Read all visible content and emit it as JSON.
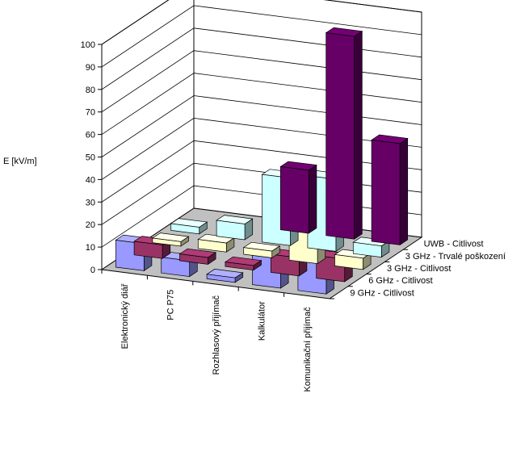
{
  "chart_data": {
    "type": "bar",
    "ylabel": "E [kV/m]",
    "ylim": [
      0,
      100
    ],
    "yticks": [
      0,
      10,
      20,
      30,
      40,
      50,
      60,
      70,
      80,
      90,
      100
    ],
    "categories": [
      "Elektronický diář",
      "PC P75",
      "Rozhlasový přijímač",
      "Kalkulátor",
      "Komunikační přijímač"
    ],
    "series": [
      {
        "name": "UWB -  Citlivost",
        "color": "#660066",
        "values": [
          null,
          null,
          28,
          90,
          45
        ]
      },
      {
        "name": "3 GHz - Trvalé poškození",
        "color": "#ccffff",
        "values": [
          3,
          7,
          30,
          32,
          5
        ]
      },
      {
        "name": "3 GHz - Citlivost",
        "color": "#ffffcc",
        "values": [
          2,
          4,
          3,
          32,
          5
        ]
      },
      {
        "name": "6 GHz - Citlivost",
        "color": "#993366",
        "values": [
          6,
          3,
          2,
          8,
          10
        ]
      },
      {
        "name": "9 GHz - Citlivost",
        "color": "#9999ff",
        "values": [
          12,
          7,
          2,
          13,
          13
        ]
      }
    ]
  }
}
